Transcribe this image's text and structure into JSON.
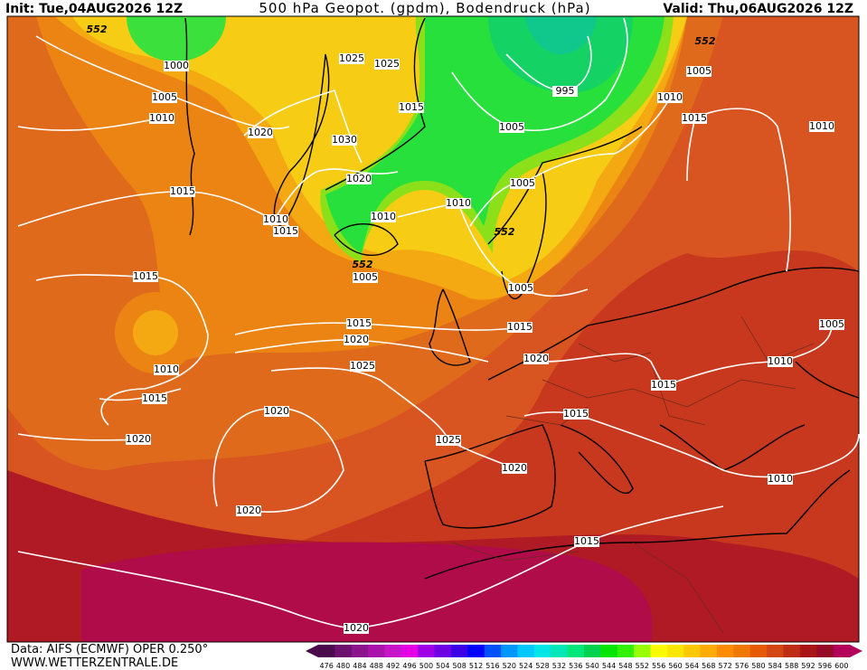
{
  "header": {
    "init": "Init: Tue,04AUG2026 12Z",
    "title": "500 hPa Geopot. (gpdm), Bodendruck (hPa)",
    "valid": "Valid: Thu,06AUG2026 12Z"
  },
  "isobar_labels": [
    552,
    1000,
    1005,
    1010,
    1020,
    1025,
    1025,
    1015,
    1030,
    1020,
    1015,
    1010,
    1015,
    1010,
    1010,
    552,
    1005,
    1005,
    995,
    552,
    1005,
    1010,
    1015,
    1010,
    1005,
    552,
    1005,
    1015,
    1015,
    1020,
    1015,
    1010,
    1025,
    1020,
    1015,
    1015,
    1020,
    1015,
    1010,
    1005,
    1020,
    1025,
    1020,
    1010,
    1020,
    1015,
    1020
  ],
  "footer": {
    "source": "Data: AIFS (ECMWF) OPER 0.250°",
    "website": "WWW.WETTERZENTRALE.DE"
  },
  "colorbar": {
    "labels": [
      476,
      480,
      484,
      488,
      492,
      496,
      500,
      504,
      508,
      512,
      516,
      520,
      524,
      528,
      532,
      536,
      540,
      544,
      548,
      552,
      556,
      560,
      564,
      568,
      572,
      576,
      580,
      584,
      588,
      592,
      596,
      600
    ],
    "colors": [
      "#4b0a4b",
      "#6e0f6e",
      "#8c148c",
      "#aa14aa",
      "#c814c8",
      "#e600e6",
      "#a000e6",
      "#6e00e6",
      "#3c00e6",
      "#0000ff",
      "#0050ff",
      "#0096ff",
      "#00c8ff",
      "#00e6e6",
      "#00e6b4",
      "#00e678",
      "#00d250",
      "#00e600",
      "#32f000",
      "#96ff00",
      "#ffff00",
      "#ffe600",
      "#ffc800",
      "#ffaa00",
      "#ff8c00",
      "#f07800",
      "#e65a00",
      "#d24614",
      "#be2d14",
      "#aa1414",
      "#960a28",
      "#b4005a"
    ]
  }
}
